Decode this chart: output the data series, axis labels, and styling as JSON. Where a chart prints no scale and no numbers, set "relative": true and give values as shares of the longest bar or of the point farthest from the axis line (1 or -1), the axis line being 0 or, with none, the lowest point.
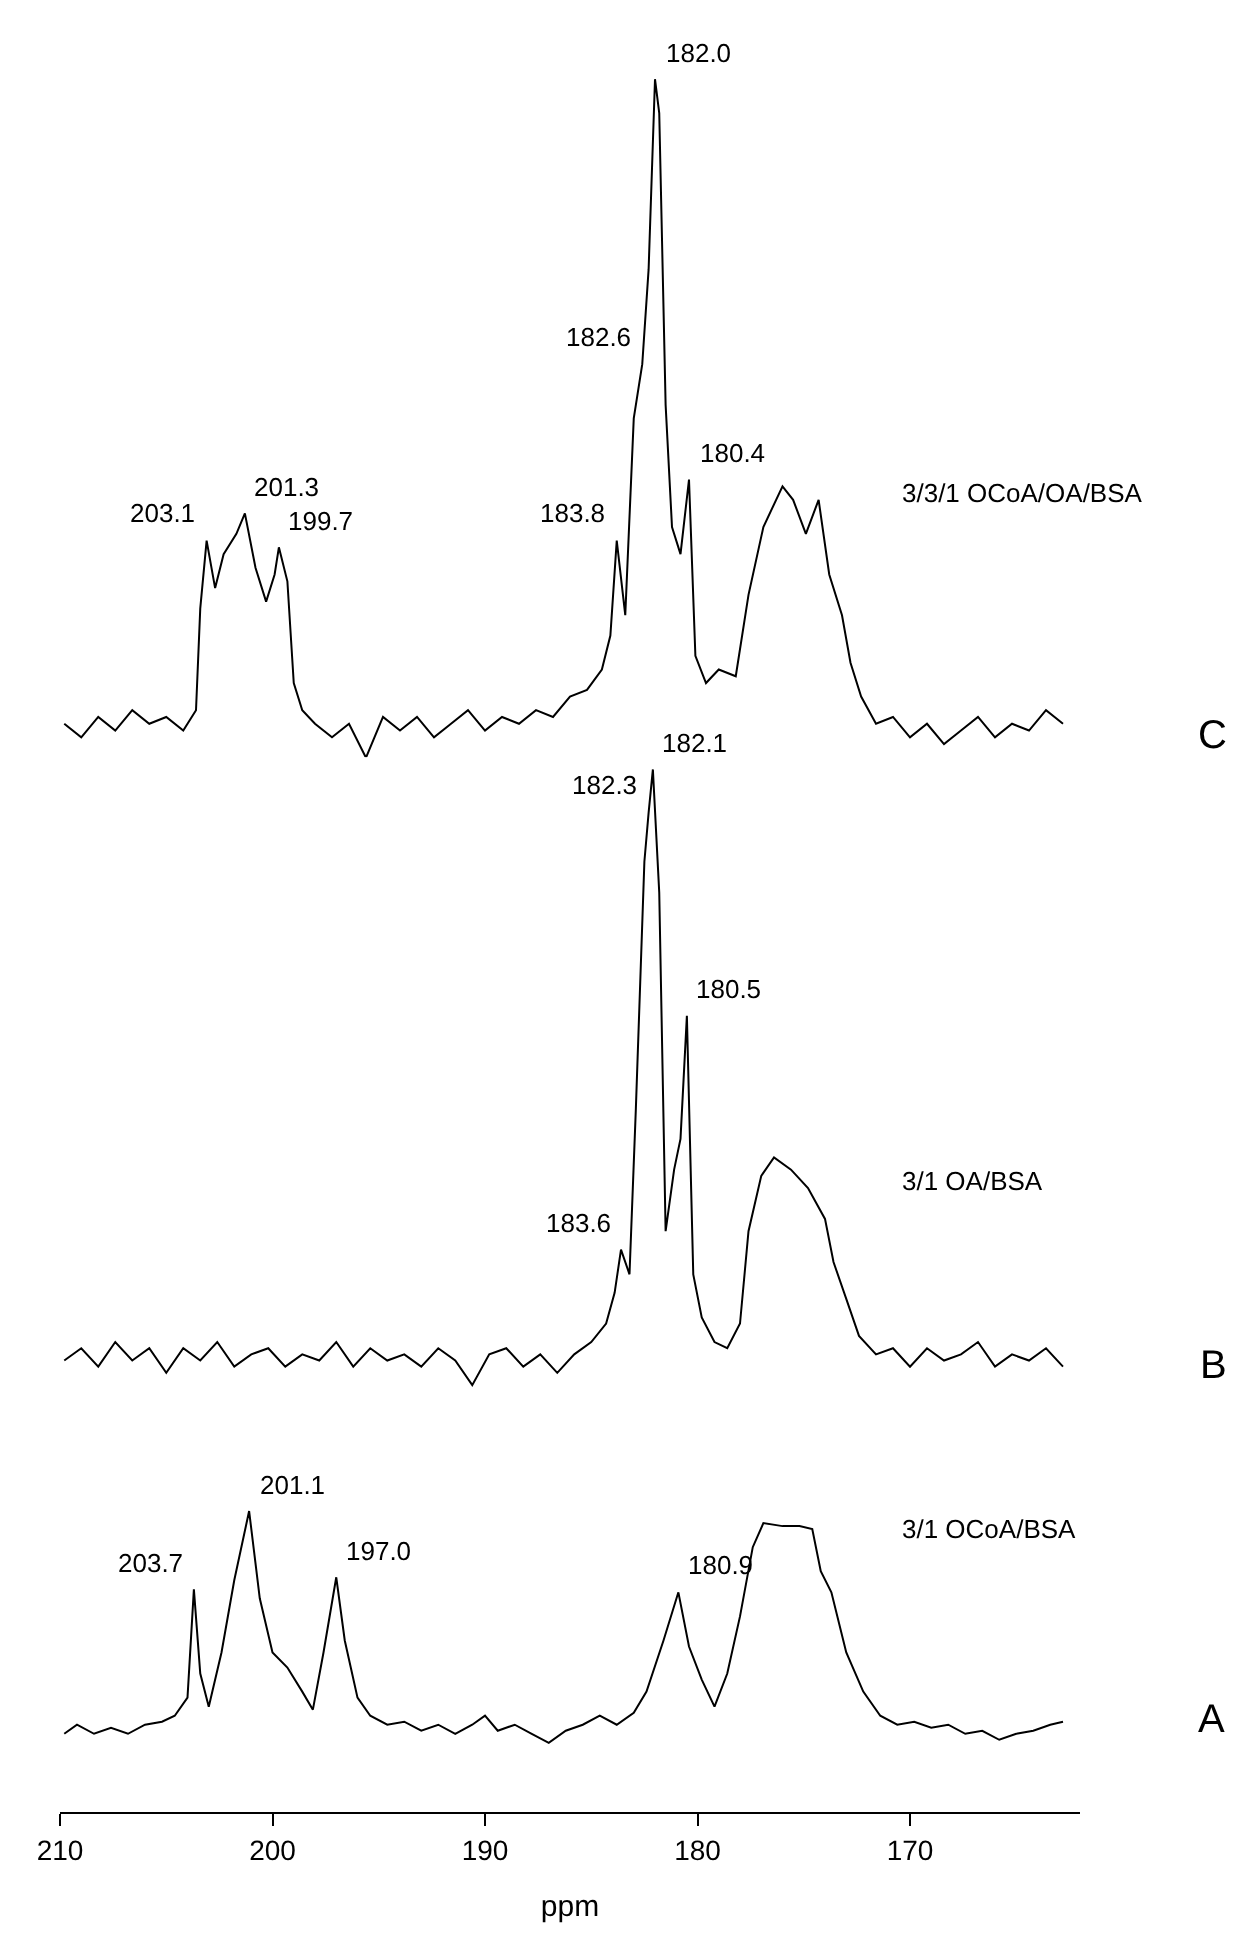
{
  "chart_data": [
    {
      "type": "line",
      "relative": true,
      "tick_labels": false,
      "xlim": [
        210,
        162
      ],
      "xticks": [
        210,
        200,
        190,
        180,
        170
      ],
      "legend": false,
      "marker": "none",
      "line_style": "solid",
      "annotations": [
        "C",
        {
          "text": "203.1",
          "x": 203.1,
          "y": 0.32
        },
        {
          "text": "201.3",
          "x": 201.3,
          "y": 0.36
        },
        {
          "text": "199.7",
          "x": 199.7,
          "y": 0.31
        },
        {
          "text": "183.8",
          "x": 183.8,
          "y": 0.32
        },
        {
          "text": "182.6",
          "x": 182.6,
          "y": 0.58
        },
        {
          "text": "182.0",
          "x": 182.0,
          "y": 1.0
        },
        {
          "text": "180.4",
          "x": 180.4,
          "y": 0.41
        }
      ],
      "series": [
        {
          "name": "3/3/1 OCoA/OA/BSA",
          "color": "#000000",
          "x": [
            209.8,
            209.0,
            208.2,
            207.4,
            206.6,
            205.8,
            205.0,
            204.2,
            203.6,
            203.4,
            203.1,
            202.7,
            202.3,
            201.7,
            201.3,
            200.8,
            200.3,
            199.9,
            199.7,
            199.3,
            199.0,
            198.6,
            198.0,
            197.2,
            196.4,
            195.6,
            194.8,
            194.0,
            193.2,
            192.4,
            191.6,
            190.8,
            190.0,
            189.2,
            188.4,
            187.6,
            186.8,
            186.0,
            185.2,
            184.5,
            184.1,
            183.8,
            183.4,
            183.0,
            182.6,
            182.3,
            182.0,
            181.8,
            181.5,
            181.2,
            180.8,
            180.4,
            180.1,
            179.6,
            179.0,
            178.2,
            177.6,
            176.9,
            176.0,
            175.5,
            174.9,
            174.3,
            173.8,
            173.2,
            172.8,
            172.3,
            171.6,
            170.8,
            170.0,
            169.2,
            168.4,
            167.6,
            166.8,
            166.0,
            165.2,
            164.4,
            163.6,
            162.8
          ],
          "values": [
            0.05,
            0.03,
            0.06,
            0.04,
            0.07,
            0.05,
            0.06,
            0.04,
            0.07,
            0.22,
            0.32,
            0.25,
            0.3,
            0.33,
            0.36,
            0.28,
            0.23,
            0.27,
            0.31,
            0.26,
            0.11,
            0.07,
            0.05,
            0.03,
            0.05,
            0.0,
            0.06,
            0.04,
            0.06,
            0.03,
            0.05,
            0.07,
            0.04,
            0.06,
            0.05,
            0.07,
            0.06,
            0.09,
            0.1,
            0.13,
            0.18,
            0.32,
            0.21,
            0.5,
            0.58,
            0.72,
            1.0,
            0.95,
            0.52,
            0.34,
            0.3,
            0.41,
            0.15,
            0.11,
            0.13,
            0.12,
            0.24,
            0.34,
            0.4,
            0.38,
            0.33,
            0.38,
            0.27,
            0.21,
            0.14,
            0.09,
            0.05,
            0.06,
            0.03,
            0.05,
            0.02,
            0.04,
            0.06,
            0.03,
            0.05,
            0.04,
            0.07,
            0.05
          ]
        }
      ]
    },
    {
      "type": "line",
      "relative": true,
      "tick_labels": false,
      "xlim": [
        210,
        162
      ],
      "xticks": [
        210,
        200,
        190,
        180,
        170
      ],
      "legend": false,
      "marker": "none",
      "line_style": "solid",
      "annotations": [
        "B",
        {
          "text": "183.6",
          "x": 183.6,
          "y": 0.22
        },
        {
          "text": "182.3",
          "x": 182.3,
          "y": 0.93
        },
        {
          "text": "182.1",
          "x": 182.1,
          "y": 1.0
        },
        {
          "text": "180.5",
          "x": 180.5,
          "y": 0.6
        }
      ],
      "series": [
        {
          "name": "3/1 OA/BSA",
          "color": "#000000",
          "x": [
            209.8,
            209.0,
            208.2,
            207.4,
            206.6,
            205.8,
            205.0,
            204.2,
            203.4,
            202.6,
            201.8,
            201.0,
            200.2,
            199.4,
            198.6,
            197.8,
            197.0,
            196.2,
            195.4,
            194.6,
            193.8,
            193.0,
            192.2,
            191.4,
            190.6,
            189.8,
            189.0,
            188.2,
            187.4,
            186.6,
            185.8,
            185.0,
            184.3,
            183.9,
            183.6,
            183.2,
            182.9,
            182.5,
            182.3,
            182.1,
            181.8,
            181.5,
            181.1,
            180.8,
            180.5,
            180.2,
            179.8,
            179.2,
            178.6,
            178.0,
            177.6,
            177.0,
            176.4,
            175.6,
            174.8,
            174.0,
            173.6,
            173.0,
            172.4,
            171.6,
            170.8,
            170.0,
            169.2,
            168.4,
            167.6,
            166.8,
            166.0,
            165.2,
            164.4,
            163.6,
            162.8
          ],
          "values": [
            0.04,
            0.06,
            0.03,
            0.07,
            0.04,
            0.06,
            0.02,
            0.06,
            0.04,
            0.07,
            0.03,
            0.05,
            0.06,
            0.03,
            0.05,
            0.04,
            0.07,
            0.03,
            0.06,
            0.04,
            0.05,
            0.03,
            0.06,
            0.04,
            0.0,
            0.05,
            0.06,
            0.03,
            0.05,
            0.02,
            0.05,
            0.07,
            0.1,
            0.15,
            0.22,
            0.18,
            0.45,
            0.85,
            0.93,
            1.0,
            0.8,
            0.25,
            0.35,
            0.4,
            0.6,
            0.18,
            0.11,
            0.07,
            0.06,
            0.1,
            0.25,
            0.34,
            0.37,
            0.35,
            0.32,
            0.27,
            0.2,
            0.14,
            0.08,
            0.05,
            0.06,
            0.03,
            0.06,
            0.04,
            0.05,
            0.07,
            0.03,
            0.05,
            0.04,
            0.06,
            0.03
          ]
        }
      ]
    },
    {
      "type": "line",
      "relative": true,
      "xlim": [
        210,
        162
      ],
      "xticks": [
        210,
        200,
        190,
        180,
        170
      ],
      "xlabel": "ppm",
      "legend": false,
      "marker": "none",
      "line_style": "solid",
      "annotations": [
        "A",
        {
          "text": "203.7",
          "x": 203.7,
          "y": 0.74
        },
        {
          "text": "201.1",
          "x": 201.1,
          "y": 1.0
        },
        {
          "text": "197.0",
          "x": 197.0,
          "y": 0.78
        },
        {
          "text": "180.9",
          "x": 180.9,
          "y": 0.73
        }
      ],
      "series": [
        {
          "name": "3/1 OCoA/BSA",
          "color": "#000000",
          "x": [
            209.8,
            209.2,
            208.4,
            207.6,
            206.8,
            206.0,
            205.2,
            204.6,
            204.0,
            203.7,
            203.4,
            203.0,
            202.4,
            201.8,
            201.1,
            200.6,
            200.0,
            199.3,
            198.6,
            198.1,
            197.6,
            197.0,
            196.6,
            196.0,
            195.4,
            194.6,
            193.8,
            193.0,
            192.2,
            191.4,
            190.6,
            190.0,
            189.4,
            188.6,
            187.8,
            187.0,
            186.2,
            185.4,
            184.6,
            183.8,
            183.0,
            182.4,
            181.6,
            180.9,
            180.4,
            179.8,
            179.2,
            178.6,
            178.0,
            177.4,
            176.9,
            176.0,
            175.2,
            174.6,
            174.2,
            173.7,
            173.0,
            172.2,
            171.4,
            170.6,
            169.8,
            169.0,
            168.2,
            167.4,
            166.6,
            165.8,
            165.0,
            164.2,
            163.4,
            162.8
          ],
          "values": [
            0.26,
            0.29,
            0.26,
            0.28,
            0.26,
            0.29,
            0.3,
            0.32,
            0.38,
            0.74,
            0.46,
            0.35,
            0.53,
            0.77,
            1.0,
            0.71,
            0.53,
            0.48,
            0.4,
            0.34,
            0.53,
            0.78,
            0.57,
            0.38,
            0.32,
            0.29,
            0.3,
            0.27,
            0.29,
            0.26,
            0.29,
            0.32,
            0.27,
            0.29,
            0.26,
            0.23,
            0.27,
            0.29,
            0.32,
            0.29,
            0.33,
            0.4,
            0.57,
            0.73,
            0.55,
            0.44,
            0.35,
            0.46,
            0.65,
            0.88,
            0.96,
            0.95,
            0.95,
            0.94,
            0.8,
            0.73,
            0.53,
            0.4,
            0.32,
            0.29,
            0.3,
            0.28,
            0.29,
            0.26,
            0.27,
            0.24,
            0.26,
            0.27,
            0.29,
            0.3
          ]
        }
      ]
    }
  ]
}
